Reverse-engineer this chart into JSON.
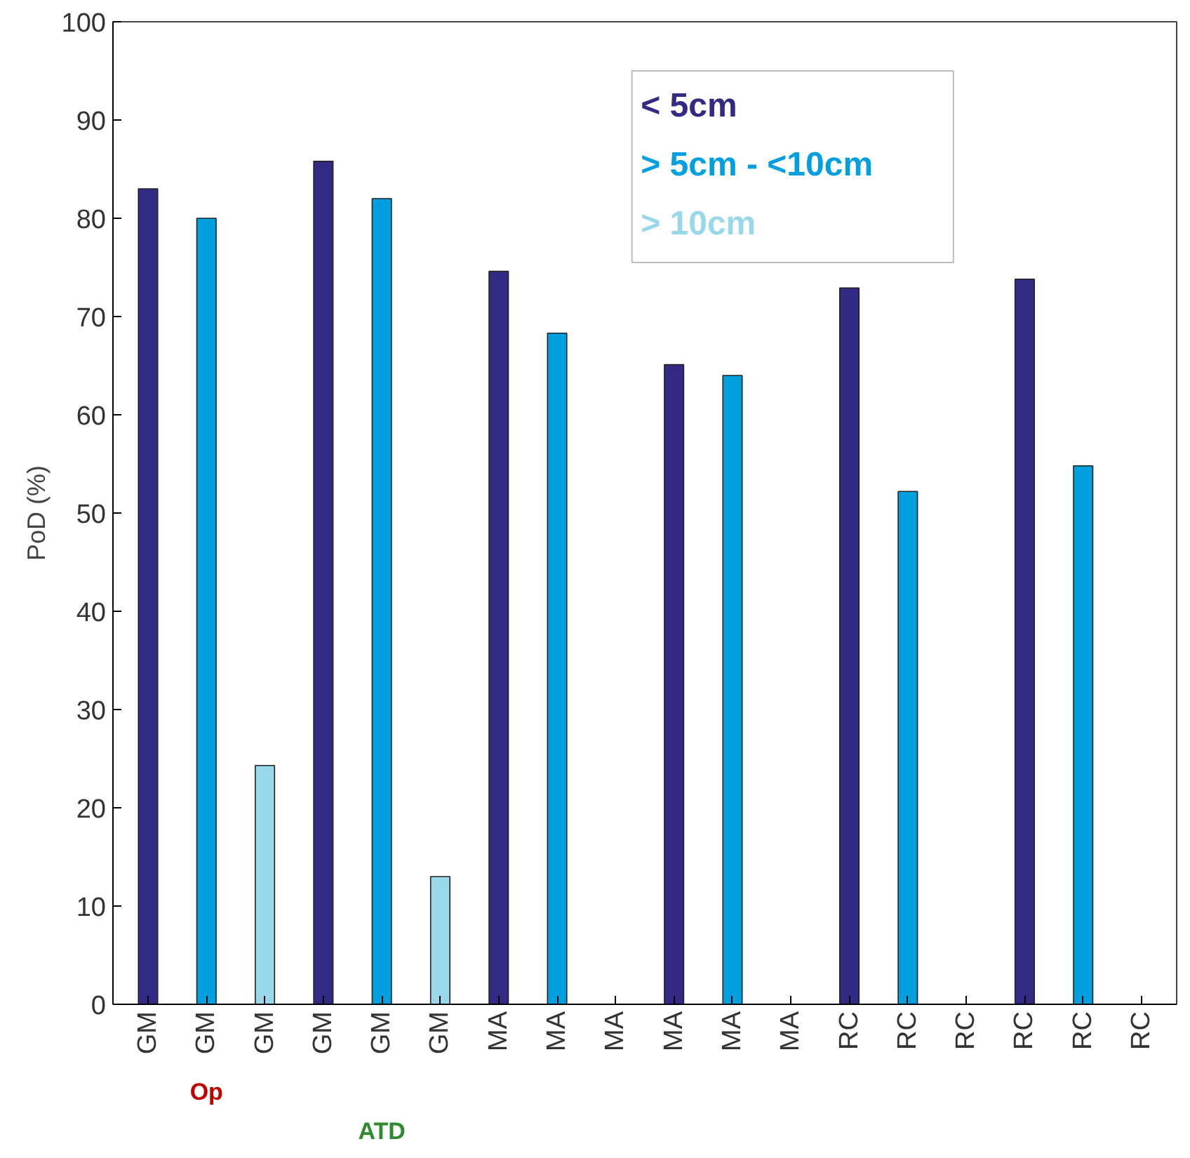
{
  "chart_data": {
    "type": "bar",
    "ylabel": "PoD (%)",
    "categories": [
      "GM",
      "GM",
      "GM",
      "GM",
      "GM",
      "GM",
      "MA",
      "MA",
      "MA",
      "MA",
      "MA",
      "MA",
      "RC",
      "RC",
      "RC",
      "RC",
      "RC",
      "RC"
    ],
    "series": [
      {
        "name": "< 5cm",
        "color": "#332a86",
        "values": [
          83,
          null,
          null,
          85.8,
          null,
          null,
          74.6,
          null,
          null,
          65.1,
          null,
          null,
          72.9,
          null,
          null,
          73.8,
          null,
          null
        ]
      },
      {
        "name": "> 5cm  - <10cm",
        "color": "#009fdf",
        "values": [
          null,
          80,
          null,
          null,
          82,
          null,
          null,
          68.3,
          null,
          null,
          64,
          null,
          null,
          52.2,
          null,
          null,
          54.8,
          null
        ]
      },
      {
        "name": "> 10cm",
        "color": "#99d8ea",
        "values": [
          null,
          null,
          24.3,
          null,
          null,
          13,
          null,
          null,
          null,
          null,
          null,
          null,
          null,
          null,
          null,
          null,
          null,
          null
        ]
      }
    ],
    "ylim": [
      0,
      100
    ],
    "yticks": [
      0,
      10,
      20,
      30,
      40,
      50,
      60,
      70,
      80,
      90,
      100
    ],
    "grid": false,
    "legend": "top right",
    "annotations": [
      "Op",
      "ATD"
    ]
  }
}
